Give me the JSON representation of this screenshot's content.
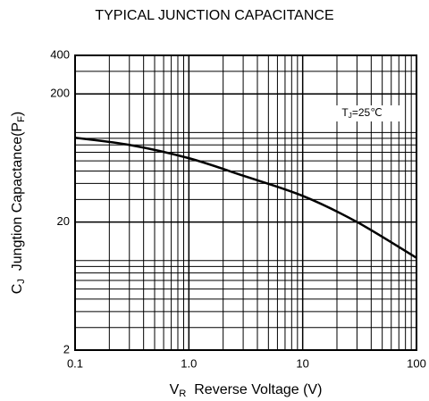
{
  "chart_data": {
    "type": "line",
    "title": "TYPICAL JUNCTION CAPACITANCE",
    "x_label": [
      {
        "text": "V"
      },
      {
        "text": "R",
        "sub": true
      },
      {
        "text": "  Reverse Voltage (V)"
      }
    ],
    "y_label": [
      {
        "text": "C"
      },
      {
        "text": "J",
        "sub": true
      },
      {
        "text": "  Jungtion Capactance(P"
      },
      {
        "text": "F",
        "sub": true
      },
      {
        "text": ")"
      }
    ],
    "annotation": [
      {
        "text": "T"
      },
      {
        "text": "J",
        "sub": true
      },
      {
        "text": "=25℃"
      }
    ],
    "x": [
      0.1,
      0.3,
      1,
      3,
      10,
      30,
      100
    ],
    "series": [
      {
        "color": "#000000",
        "values": [
          91,
          80,
          63,
          46,
          32,
          20,
          10.5
        ]
      }
    ],
    "xlim": [
      0.1,
      100
    ],
    "ylim": [
      2,
      400
    ],
    "xticks": [
      0.1,
      {
        "value": 1,
        "label": "1.0"
      },
      10,
      100
    ],
    "yticks": [
      2,
      20,
      200,
      400
    ],
    "log_x": true,
    "log_y": true,
    "grid": true,
    "minor_grid": true
  }
}
